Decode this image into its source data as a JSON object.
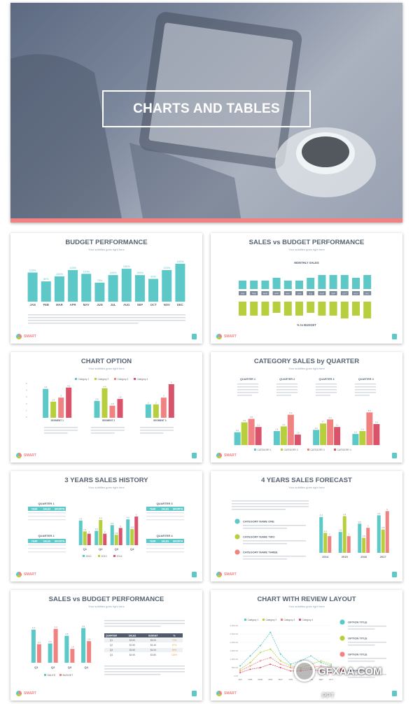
{
  "hero": {
    "title": "CHARTS AND TABLES"
  },
  "common": {
    "subtitle": "Your subtitles goes right here",
    "brand": "SMART"
  },
  "slides": {
    "budget": {
      "title": "BUDGET PERFORMANCE"
    },
    "sales_budget": {
      "title": "SALES vs BUDGET PERFORMANCE",
      "top_label": "MONTHLY SALES",
      "bottom_label": "% to BUDGET"
    },
    "chart_option": {
      "title": "CHART OPTION"
    },
    "category_sales": {
      "title": "CATEGORY SALES by QUARTER"
    },
    "history": {
      "title": "3 YEARS SALES HISTORY"
    },
    "forecast": {
      "title": "4 YEARS SALES FORECAST"
    },
    "sales_budget2": {
      "title": "SALES vs BUDGET PERFORMANCE"
    },
    "review": {
      "title": "CHART WITH REVIEW LAYOUT"
    }
  },
  "chart_data": [
    {
      "type": "bar",
      "title": "BUDGET PERFORMANCE",
      "categories": [
        "JAN",
        "FEB",
        "MAR",
        "APR",
        "MAY",
        "JUN",
        "JUL",
        "AUG",
        "SEP",
        "OCT",
        "NOV",
        "DEC"
      ],
      "values": [
        115,
        80,
        100,
        125,
        110,
        75,
        105,
        130,
        105,
        90,
        125,
        150
      ],
      "data_labels": [
        "115%",
        "80%",
        "100%",
        "125%",
        "110%",
        "75%",
        "105%",
        "130%",
        "105%",
        "90%",
        "125%",
        "150%"
      ],
      "ylim": [
        0,
        160
      ]
    },
    {
      "type": "bar",
      "title": "SALES vs BUDGET PERFORMANCE",
      "series": [
        {
          "name": "MONTHLY SALES",
          "values": [
            3,
            3,
            3,
            4,
            3,
            3,
            4,
            5,
            5,
            5,
            4,
            5
          ]
        },
        {
          "name": "% to BUDGET",
          "values": [
            5,
            5,
            5,
            4,
            5,
            5,
            4,
            5,
            5,
            6,
            5,
            6
          ]
        }
      ],
      "categories": [
        "JAN",
        "FEB",
        "MAR",
        "APR",
        "MAY",
        "JUN",
        "JUL",
        "AUG",
        "SEP",
        "OCT",
        "NOV",
        "DEC"
      ]
    },
    {
      "type": "bar",
      "title": "CHART OPTION",
      "categories": [
        "SEGMENT 1",
        "SEGMENT 2",
        "SEGMENT 3"
      ],
      "series": [
        {
          "name": "Category 1",
          "values": [
            4.3,
            2.5,
            2.0
          ]
        },
        {
          "name": "Category 2",
          "values": [
            2.4,
            4.4,
            2.0
          ]
        },
        {
          "name": "Category 3",
          "values": [
            3.0,
            1.8,
            3.0
          ]
        },
        {
          "name": "Category 4",
          "values": [
            4.5,
            2.8,
            5.0
          ]
        }
      ],
      "ylim": [
        0,
        5
      ]
    },
    {
      "type": "bar",
      "title": "CATEGORY SALES by QUARTER",
      "categories": [
        "QUARTER 1",
        "QUARTER 2",
        "QUARTER 3",
        "QUARTER 4"
      ],
      "series": [
        {
          "name": "CATEGORY 1",
          "values": [
            2.2,
            2.4,
            2.6,
            1.9
          ]
        },
        {
          "name": "CATEGORY 2",
          "values": [
            3.9,
            3.2,
            3.7,
            2.4
          ]
        },
        {
          "name": "CATEGORY 3",
          "values": [
            4.5,
            5.2,
            4.4,
            5.6
          ]
        },
        {
          "name": "CATEGORY 4",
          "values": [
            3.1,
            1.8,
            3.1,
            3.6
          ]
        }
      ]
    },
    {
      "type": "bar",
      "title": "3 YEARS SALES HISTORY",
      "categories": [
        "Q1",
        "Q2",
        "Q3",
        "Q4"
      ],
      "series": [
        {
          "name": "2012",
          "values": [
            4.3,
            2.5,
            3.5,
            4.5
          ]
        },
        {
          "name": "2013",
          "values": [
            2.4,
            4.4,
            1.8,
            2.8
          ]
        },
        {
          "name": "2014",
          "values": [
            2.0,
            2.0,
            3.0,
            5.0
          ]
        }
      ]
    },
    {
      "type": "bar",
      "title": "4 YEARS SALES FORECAST",
      "categories": [
        "2014",
        "2015",
        "2016",
        "2017"
      ],
      "series": [
        {
          "name": "CATEGORY NAME ONE",
          "values": [
            4.3,
            2.5,
            3.5,
            4.5
          ]
        },
        {
          "name": "CATEGORY NAME TWO",
          "values": [
            2.4,
            4.4,
            1.8,
            2.8
          ]
        },
        {
          "name": "CATEGORY NAME THREE",
          "values": [
            2.0,
            2.0,
            3.0,
            5.0
          ]
        }
      ]
    },
    {
      "type": "bar",
      "title": "SALES vs BUDGET PERFORMANCE",
      "categories": [
        "Q1",
        "Q2",
        "Q3",
        "Q4"
      ],
      "series": [
        {
          "name": "SALES",
          "values": [
            4.3,
            2.5,
            3.5,
            4.5
          ]
        },
        {
          "name": "BUDGET",
          "values": [
            2.4,
            4.4,
            1.8,
            2.8
          ]
        }
      ]
    },
    {
      "type": "line",
      "title": "CHART WITH REVIEW LAYOUT",
      "categories": [
        "JAN",
        "FEB",
        "MAR",
        "APR",
        "MAY",
        "JUN",
        "JUL",
        "AUG",
        "SEP",
        "OCT"
      ],
      "series": [
        {
          "name": "Category 1",
          "values": [
            600,
            1200,
            1800,
            2600,
            1300,
            700,
            900,
            1200,
            800,
            600
          ]
        },
        {
          "name": "Category 2",
          "values": [
            400,
            800,
            1400,
            1600,
            900,
            600,
            500,
            700,
            900,
            700
          ]
        },
        {
          "name": "Category 3",
          "values": [
            300,
            600,
            900,
            1100,
            700,
            500,
            400,
            500,
            600,
            500
          ]
        },
        {
          "name": "Category 4",
          "values": [
            200,
            400,
            500,
            700,
            500,
            300,
            300,
            400,
            300,
            200
          ]
        }
      ],
      "ytick_labels": [
        "3,000.00",
        "2,500.00",
        "2,000.00",
        "1,500.00",
        "1,000.00",
        "500.00",
        "0.00"
      ]
    }
  ],
  "review_items": [
    "OPTION TITLE",
    "OPTION TITLE",
    "OPTION TITLE",
    "OPTION TITLE"
  ],
  "forecast_items": [
    "CATEGORY NAME ONE",
    "CATEGORY NAME TWO",
    "CATEGORY NAME THREE"
  ],
  "history_quarters": [
    "QUARTER 1",
    "QUARTER 2",
    "QUARTER 3",
    "QUARTER 4"
  ],
  "table_headers": [
    "YEAR",
    "SALES",
    "GROWTH"
  ],
  "budget_table": {
    "headers": [
      "QUARTER",
      "SALES",
      "BUDGET",
      "%"
    ],
    "rows": [
      [
        "Q1",
        "$3.5K",
        "$5.0K",
        "70%"
      ],
      [
        "Q2",
        "$2.5K",
        "$4.4K",
        "57%"
      ],
      [
        "Q3",
        "$3.5K",
        "$4.0K",
        "88%"
      ],
      [
        "Q4",
        "$4.5K",
        "$3.8K",
        "118%"
      ]
    ]
  },
  "quarter_headers": [
    "QUARTER 1",
    "QUARTER 2",
    "QUARTER 3",
    "QUARTER 4"
  ],
  "watermark": {
    "text": "GFXAA.COM",
    "sub": "PPT"
  },
  "colors": {
    "teal": "#5cc8c8",
    "green": "#b7cf3c",
    "red": "#f08282",
    "darkred": "#d9546a",
    "coral": "#f08282"
  }
}
